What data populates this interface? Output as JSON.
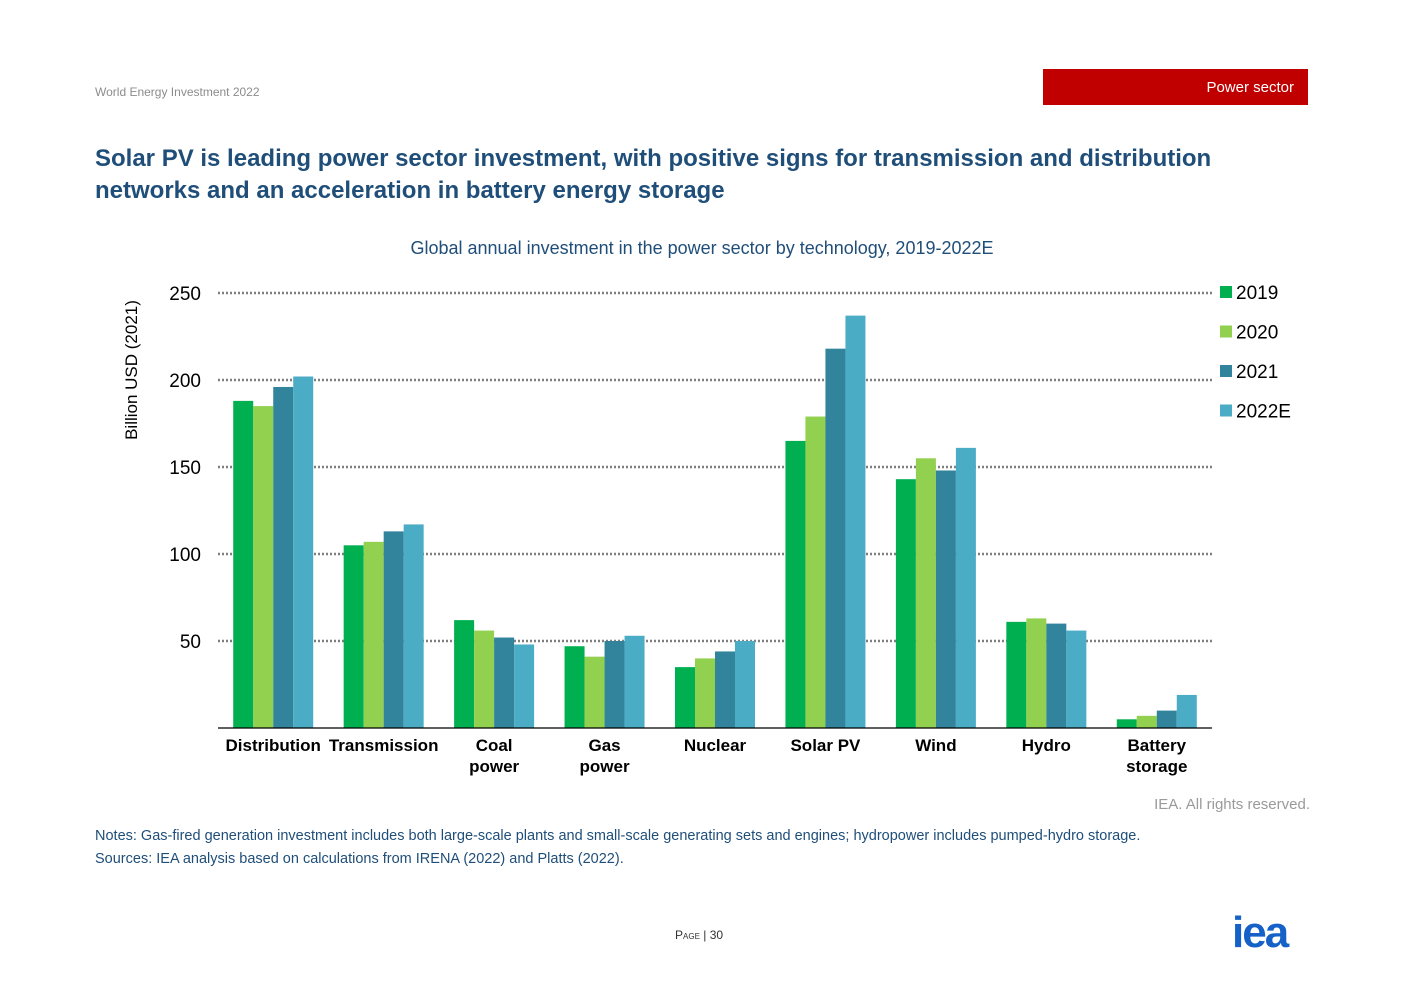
{
  "header": {
    "report_name": "World Energy Investment 2022",
    "section_tag": "Power sector",
    "section_color": "#c00000",
    "headline": "Solar PV is leading power sector investment, with positive signs for transmission and distribution networks and an acceleration in battery energy storage"
  },
  "chart_data": {
    "type": "bar",
    "title": "Global annual investment in the power sector by technology, 2019-2022E",
    "ylabel": "Billion USD (2021)",
    "xlabel": "",
    "ylim": [
      0,
      250
    ],
    "yticks": [
      50,
      100,
      150,
      200,
      250
    ],
    "grid": true,
    "legend_position": "right",
    "categories": [
      [
        "Distribution"
      ],
      [
        "Transmission"
      ],
      [
        "Coal",
        "power"
      ],
      [
        "Gas",
        "power"
      ],
      [
        "Nuclear"
      ],
      [
        "Solar PV"
      ],
      [
        "Wind"
      ],
      [
        "Hydro"
      ],
      [
        "Battery",
        "storage"
      ]
    ],
    "series": [
      {
        "name": "2019",
        "color": "#00b050",
        "values": [
          188,
          105,
          62,
          47,
          35,
          165,
          143,
          61,
          5
        ]
      },
      {
        "name": "2020",
        "color": "#92d050",
        "values": [
          185,
          107,
          56,
          41,
          40,
          179,
          155,
          63,
          7
        ]
      },
      {
        "name": "2021",
        "color": "#31849b",
        "values": [
          196,
          113,
          52,
          50,
          44,
          218,
          148,
          60,
          10
        ]
      },
      {
        "name": "2022E",
        "color": "#4bacc6",
        "values": [
          202,
          117,
          48,
          53,
          50,
          237,
          161,
          56,
          19
        ]
      }
    ]
  },
  "footer": {
    "rights": "IEA. All rights reserved.",
    "notes": "Notes: Gas-fired generation investment includes both large-scale plants and small-scale generating sets and engines; hydropower includes pumped-hydro storage.",
    "sources": "Sources: IEA analysis based on calculations from IRENA (2022) and Platts (2022).",
    "page_label": "Page",
    "page_number": "30",
    "logo_text": "iea",
    "logo_color": "#1561c8"
  }
}
